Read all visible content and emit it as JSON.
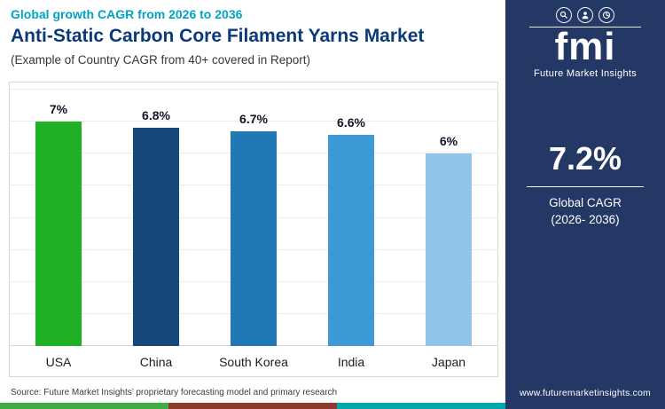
{
  "colors": {
    "accent_teal": "#00a4c4",
    "title_navy": "#0a3a7a",
    "sidebar_navy": "#233864",
    "grid_line": "#ececec"
  },
  "header": {
    "subtitle": "Global growth CAGR from 2026 to 2036",
    "title": "Anti-Static Carbon Core Filament Yarns Market",
    "note": "(Example of Country CAGR from 40+ covered in Report)"
  },
  "chart_data": {
    "type": "bar",
    "title": "Anti-Static Carbon Core Filament Yarns Market",
    "subtitle": "Global growth CAGR from 2026 to 2036",
    "categories": [
      "USA",
      "China",
      "South Korea",
      "India",
      "Japan"
    ],
    "values": [
      7,
      6.8,
      6.7,
      6.6,
      6
    ],
    "value_labels": [
      "7%",
      "6.8%",
      "6.7%",
      "6.6%",
      "6%"
    ],
    "bar_colors": [
      "#1fb024",
      "#15497c",
      "#2078b4",
      "#3d9ad6",
      "#90c4e8"
    ],
    "unit": "% CAGR",
    "xlabel": "",
    "ylabel": "",
    "ylim": [
      0,
      8
    ],
    "grid": true,
    "legend": false
  },
  "source": "Source: Future Market Insights’ proprietary forecasting model and primary research",
  "sidebar": {
    "logo_text": "fmi",
    "brand_name": "Future Market Insights",
    "stat_value": "7.2%",
    "stat_label_line1": "Global CAGR",
    "stat_label_line2": "(2026- 2036)",
    "website": "www.futuremarketinsights.com",
    "icons": [
      "chat-search-icon",
      "person-icon",
      "pie-chart-icon"
    ]
  },
  "footer_strip": {
    "colors": [
      "#3fae49",
      "#8c3a2b",
      "#00a8ac",
      "#233864"
    ]
  }
}
